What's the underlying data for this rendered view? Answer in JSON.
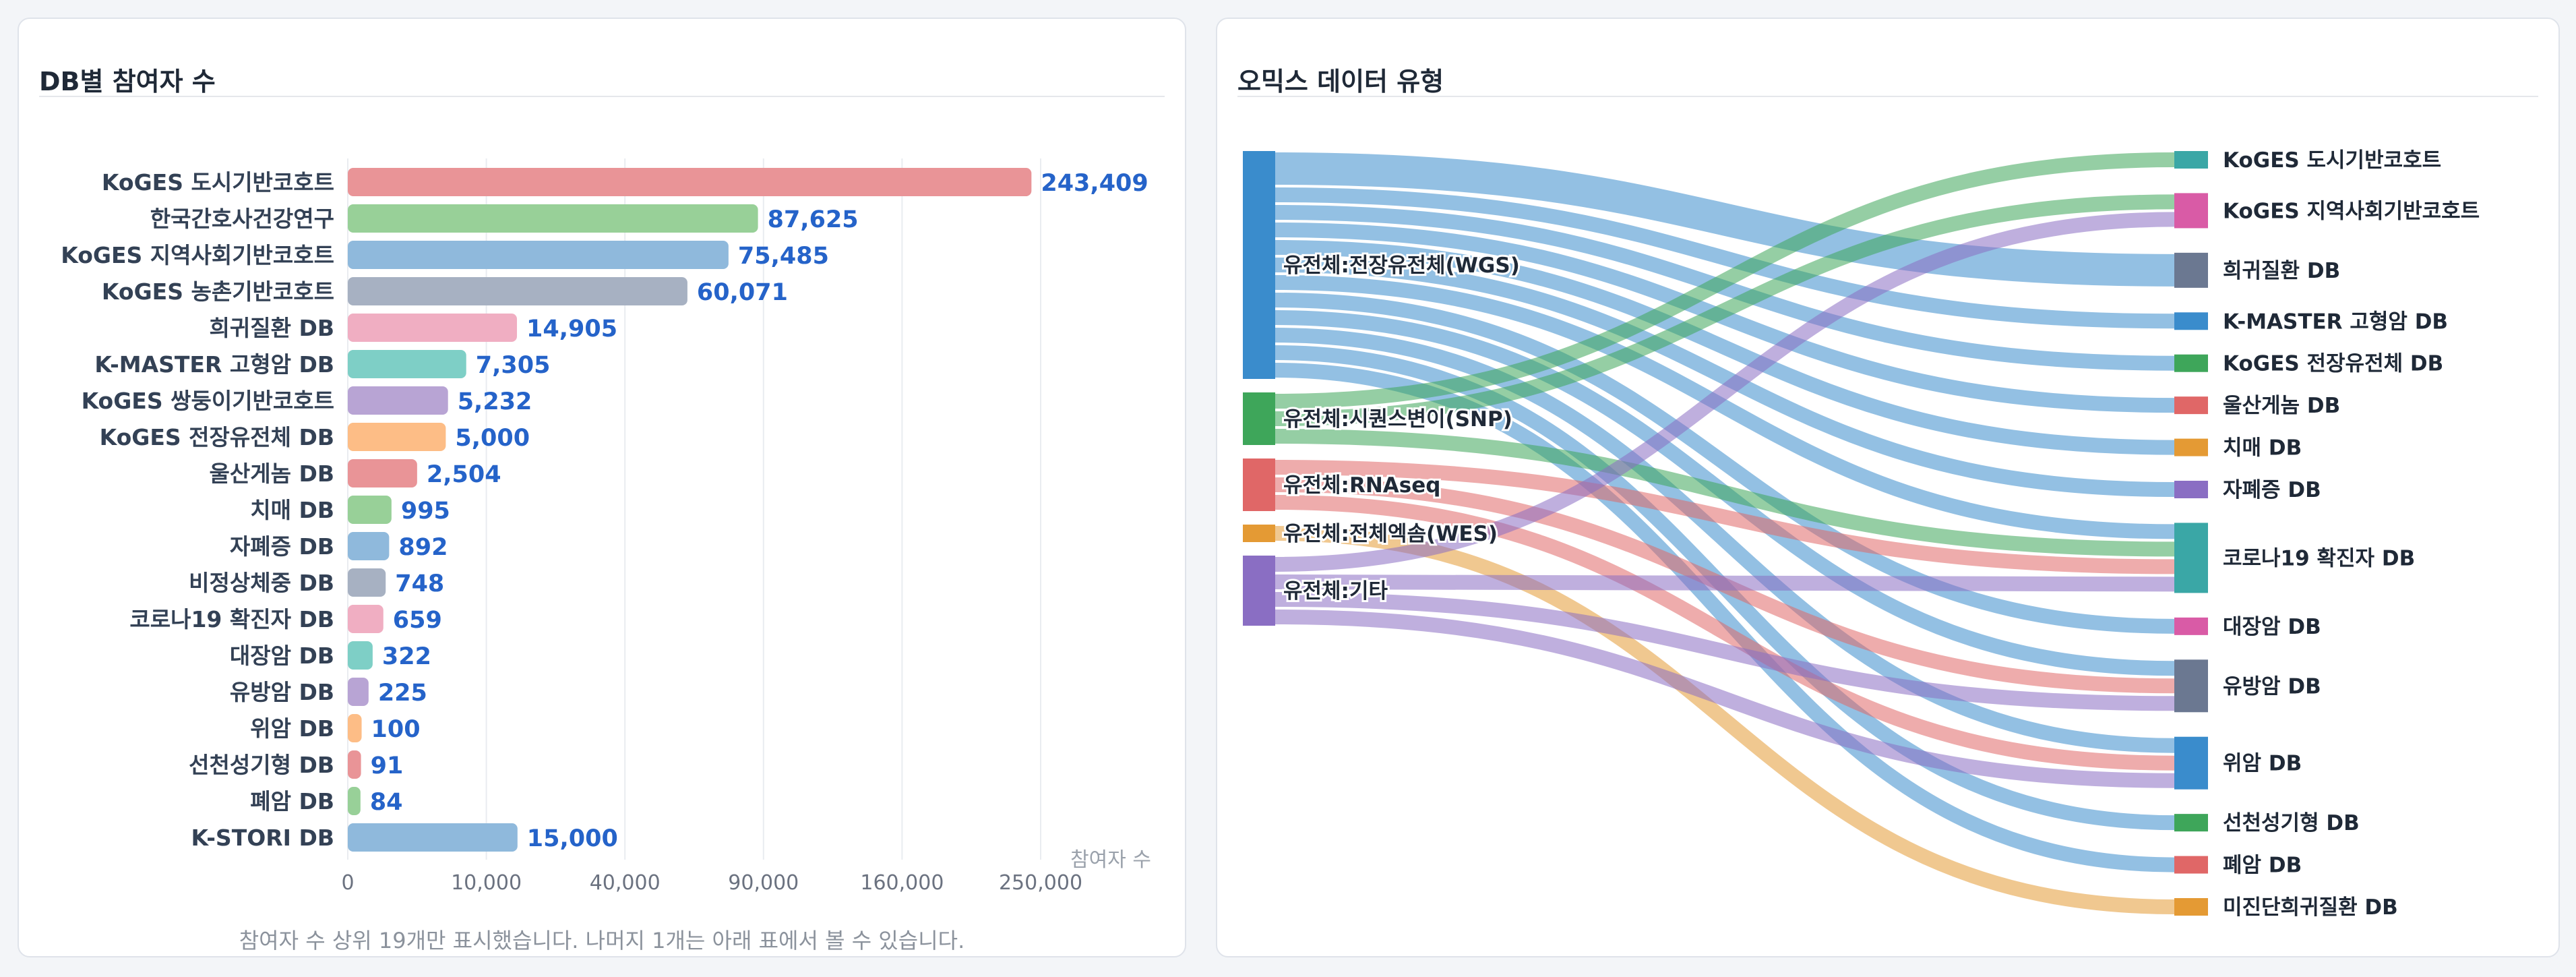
{
  "left_panel": {
    "title": "DB별 참여자 수",
    "footnote": "참여자 수 상위 19개만 표시했습니다. 나머지 1개는 아래 표에서 볼 수 있습니다."
  },
  "right_panel": {
    "title": "오믹스 데이터 유형"
  },
  "chart_data": [
    {
      "type": "bar",
      "orientation": "horizontal",
      "xlabel": "참여자 수",
      "x_scale": "sqrt",
      "xlim": [
        0,
        250000
      ],
      "x_ticks": [
        0,
        10000,
        40000,
        90000,
        160000,
        250000
      ],
      "x_tick_labels": [
        "0",
        "10,000",
        "40,000",
        "90,000",
        "160,000",
        "250,000"
      ],
      "grid": true,
      "categories": [
        "KoGES 도시기반코호트",
        "한국간호사건강연구",
        "KoGES 지역사회기반코호트",
        "KoGES 농촌기반코호트",
        "희귀질환 DB",
        "K-MASTER 고형암 DB",
        "KoGES 쌍둥이기반코호트",
        "KoGES 전장유전체 DB",
        "울산게놈 DB",
        "치매 DB",
        "자폐증 DB",
        "비정상체중 DB",
        "코로나19 확진자 DB",
        "대장암 DB",
        "유방암 DB",
        "위암 DB",
        "선천성기형 DB",
        "폐암 DB",
        "K-STORI DB"
      ],
      "values": [
        243409,
        87625,
        75485,
        60071,
        14905,
        7305,
        5232,
        5000,
        2504,
        995,
        892,
        748,
        659,
        322,
        225,
        100,
        91,
        84,
        15000
      ],
      "value_labels": [
        "243,409",
        "87,625",
        "75,485",
        "60,071",
        "14,905",
        "7,305",
        "5,232",
        "5,000",
        "2,504",
        "995",
        "892",
        "748",
        "659",
        "322",
        "225",
        "100",
        "91",
        "84",
        "15,000"
      ],
      "colors": [
        "#e99497",
        "#98d098",
        "#8fb9dc",
        "#a7b1c2",
        "#f0aec2",
        "#7ecfc6",
        "#b8a4d4",
        "#fdbd86",
        "#e99497",
        "#98d098",
        "#8fb9dc",
        "#a7b1c2",
        "#f0aec2",
        "#7ecfc6",
        "#b8a4d4",
        "#fdbd86",
        "#e99497",
        "#98d098",
        "#8fb9dc"
      ],
      "value_label_color": "#2563c9"
    },
    {
      "type": "sankey",
      "sources": [
        {
          "name": "유전체:전장유전체(WGS)",
          "color": "#3a8ccc"
        },
        {
          "name": "유전체:시퀀스변이(SNP)",
          "color": "#3ea65a"
        },
        {
          "name": "유전체:RNAseq",
          "color": "#e06767"
        },
        {
          "name": "유전체:전체엑솜(WES)",
          "color": "#e49a34"
        },
        {
          "name": "유전체:기타",
          "color": "#8a6ec3"
        }
      ],
      "targets": [
        {
          "name": "KoGES 도시기반코호트",
          "color": "#3aa7a6"
        },
        {
          "name": "KoGES 지역사회기반코호트",
          "color": "#d95ba6"
        },
        {
          "name": "희귀질환 DB",
          "color": "#6b7891"
        },
        {
          "name": "K-MASTER 고형암 DB",
          "color": "#3a8ccc"
        },
        {
          "name": "KoGES 전장유전체 DB",
          "color": "#3ea65a"
        },
        {
          "name": "울산게놈 DB",
          "color": "#e06767"
        },
        {
          "name": "치매 DB",
          "color": "#e49a34"
        },
        {
          "name": "자폐증 DB",
          "color": "#8a6ec3"
        },
        {
          "name": "코로나19 확진자 DB",
          "color": "#3aa7a6"
        },
        {
          "name": "대장암 DB",
          "color": "#d95ba6"
        },
        {
          "name": "유방암 DB",
          "color": "#6b7891"
        },
        {
          "name": "위암 DB",
          "color": "#3a8ccc"
        },
        {
          "name": "선천성기형 DB",
          "color": "#3ea65a"
        },
        {
          "name": "폐암 DB",
          "color": "#e06767"
        },
        {
          "name": "미진단희귀질환 DB",
          "color": "#e49a34"
        }
      ],
      "links": [
        {
          "source": 0,
          "target": 2,
          "value": 2
        },
        {
          "source": 0,
          "target": 3,
          "value": 1
        },
        {
          "source": 0,
          "target": 4,
          "value": 1
        },
        {
          "source": 0,
          "target": 5,
          "value": 1
        },
        {
          "source": 0,
          "target": 6,
          "value": 1
        },
        {
          "source": 0,
          "target": 7,
          "value": 1
        },
        {
          "source": 0,
          "target": 8,
          "value": 1
        },
        {
          "source": 0,
          "target": 9,
          "value": 1
        },
        {
          "source": 0,
          "target": 10,
          "value": 1
        },
        {
          "source": 0,
          "target": 11,
          "value": 1
        },
        {
          "source": 0,
          "target": 12,
          "value": 1
        },
        {
          "source": 0,
          "target": 13,
          "value": 1
        },
        {
          "source": 1,
          "target": 0,
          "value": 1
        },
        {
          "source": 1,
          "target": 1,
          "value": 1
        },
        {
          "source": 1,
          "target": 8,
          "value": 1
        },
        {
          "source": 2,
          "target": 8,
          "value": 1
        },
        {
          "source": 2,
          "target": 10,
          "value": 1
        },
        {
          "source": 2,
          "target": 11,
          "value": 1
        },
        {
          "source": 3,
          "target": 14,
          "value": 1
        },
        {
          "source": 4,
          "target": 1,
          "value": 1
        },
        {
          "source": 4,
          "target": 8,
          "value": 1
        },
        {
          "source": 4,
          "target": 10,
          "value": 1
        },
        {
          "source": 4,
          "target": 11,
          "value": 1
        }
      ]
    }
  ]
}
